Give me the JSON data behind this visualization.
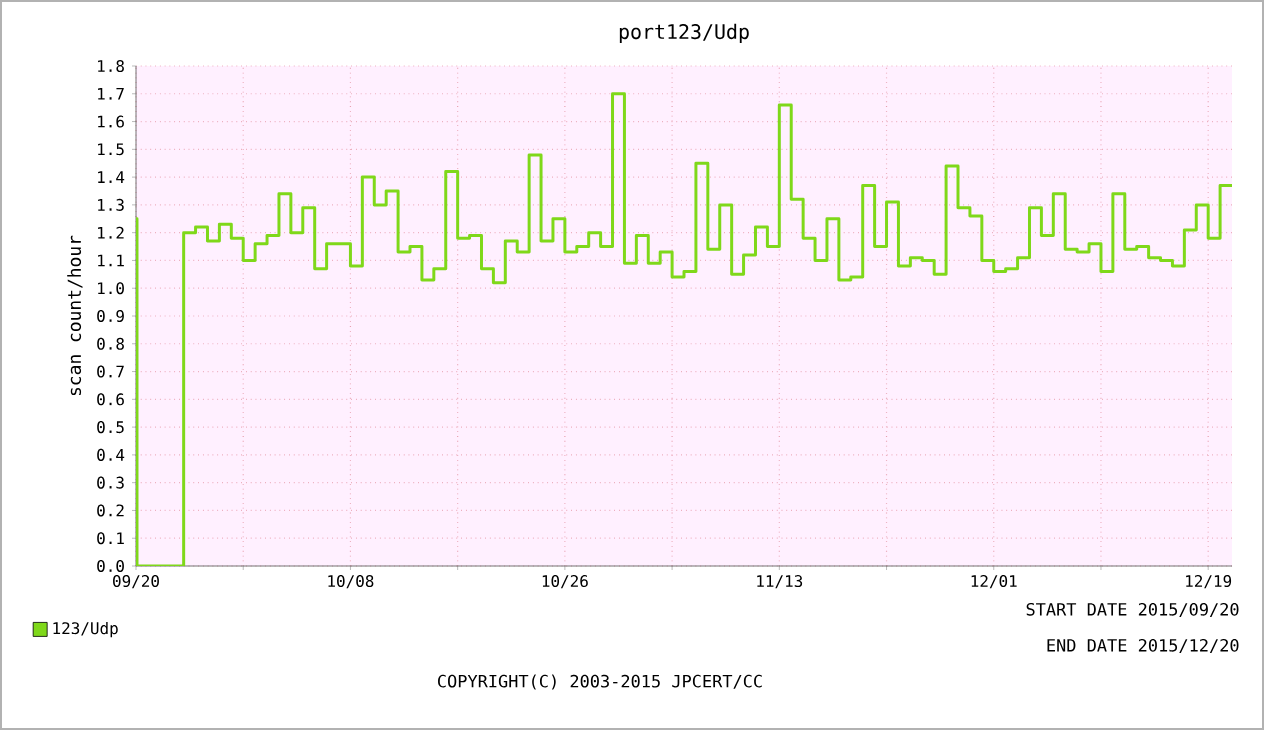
{
  "chart_data": {
    "type": "step",
    "title": "port123/Udp",
    "ylabel": "scan count/hour",
    "xlim": [
      "2015-09-20",
      "2015-12-21"
    ],
    "ylim": [
      0,
      1.8
    ],
    "xticks": [
      {
        "value": "2015-09-20",
        "label": "09/20"
      },
      {
        "value": "2015-09-29",
        "label": null
      },
      {
        "value": "2015-10-08",
        "label": "10/08"
      },
      {
        "value": "2015-10-17",
        "label": null
      },
      {
        "value": "2015-10-26",
        "label": "10/26"
      },
      {
        "value": "2015-11-04",
        "label": null
      },
      {
        "value": "2015-11-13",
        "label": "11/13"
      },
      {
        "value": "2015-11-22",
        "label": null
      },
      {
        "value": "2015-12-01",
        "label": "12/01"
      },
      {
        "value": "2015-12-10",
        "label": null
      },
      {
        "value": "2015-12-19",
        "label": "12/19"
      }
    ],
    "yticks": [
      {
        "value": 0,
        "label": "0.0"
      },
      0.1,
      0.2,
      0.3,
      0.4,
      0.5,
      0.6,
      0.7,
      0.8,
      0.9,
      {
        "value": 1,
        "label": "1.0"
      },
      1.1,
      1.2,
      1.3,
      1.4,
      1.5,
      1.6,
      1.7,
      1.8
    ],
    "grid": true,
    "legend": "bottom left",
    "annotations": [
      "START DATE 2015/09/20",
      "END DATE 2015/12/20",
      "COPYRIGHT(C) 2003-2015 JPCERT/CC"
    ],
    "series": [
      {
        "name": "123/Udp",
        "color": "#7fd81a",
        "x": [
          "2015-09-20",
          "2015-09-20T02:00",
          "2015-09-24",
          "2015-09-25",
          "2015-09-26",
          "2015-09-27",
          "2015-09-28",
          "2015-09-29",
          "2015-09-30",
          "2015-10-01",
          "2015-10-02",
          "2015-10-03",
          "2015-10-04",
          "2015-10-05",
          "2015-10-06",
          "2015-10-07",
          "2015-10-08",
          "2015-10-09",
          "2015-10-10",
          "2015-10-11",
          "2015-10-12",
          "2015-10-13",
          "2015-10-14",
          "2015-10-15",
          "2015-10-16",
          "2015-10-17",
          "2015-10-18",
          "2015-10-19",
          "2015-10-20",
          "2015-10-21",
          "2015-10-22",
          "2015-10-23",
          "2015-10-24",
          "2015-10-25",
          "2015-10-26",
          "2015-10-27",
          "2015-10-28",
          "2015-10-29",
          "2015-10-30",
          "2015-10-31",
          "2015-11-01",
          "2015-11-02",
          "2015-11-03",
          "2015-11-04",
          "2015-11-05",
          "2015-11-06",
          "2015-11-07",
          "2015-11-08",
          "2015-11-09",
          "2015-11-10",
          "2015-11-11",
          "2015-11-12",
          "2015-11-13",
          "2015-11-14",
          "2015-11-15",
          "2015-11-16",
          "2015-11-17",
          "2015-11-18",
          "2015-11-19",
          "2015-11-20",
          "2015-11-21",
          "2015-11-22",
          "2015-11-23",
          "2015-11-24",
          "2015-11-25",
          "2015-11-26",
          "2015-11-27",
          "2015-11-28",
          "2015-11-29",
          "2015-11-30",
          "2015-12-01",
          "2015-12-02",
          "2015-12-03",
          "2015-12-04",
          "2015-12-05",
          "2015-12-06",
          "2015-12-07",
          "2015-12-08",
          "2015-12-09",
          "2015-12-10",
          "2015-12-11",
          "2015-12-12",
          "2015-12-13",
          "2015-12-14",
          "2015-12-15",
          "2015-12-16",
          "2015-12-17",
          "2015-12-18",
          "2015-12-19",
          "2015-12-20",
          "2015-12-21"
        ],
        "values": [
          1.25,
          0,
          1.2,
          1.22,
          1.17,
          1.23,
          1.18,
          1.1,
          1.16,
          1.19,
          1.34,
          1.2,
          1.29,
          1.07,
          1.16,
          1.16,
          1.08,
          1.4,
          1.3,
          1.35,
          1.13,
          1.15,
          1.03,
          1.07,
          1.42,
          1.18,
          1.19,
          1.07,
          1.02,
          1.17,
          1.13,
          1.48,
          1.17,
          1.25,
          1.13,
          1.15,
          1.2,
          1.15,
          1.7,
          1.09,
          1.19,
          1.09,
          1.13,
          1.04,
          1.06,
          1.45,
          1.14,
          1.3,
          1.05,
          1.12,
          1.22,
          1.15,
          1.66,
          1.32,
          1.18,
          1.1,
          1.25,
          1.03,
          1.04,
          1.37,
          1.15,
          1.31,
          1.08,
          1.11,
          1.1,
          1.05,
          1.44,
          1.29,
          1.26,
          1.1,
          1.06,
          1.07,
          1.11,
          1.29,
          1.19,
          1.34,
          1.14,
          1.13,
          1.16,
          1.06,
          1.34,
          1.14,
          1.15,
          1.11,
          1.1,
          1.08,
          1.21,
          1.3,
          1.18,
          1.37,
          1.37
        ]
      }
    ]
  }
}
